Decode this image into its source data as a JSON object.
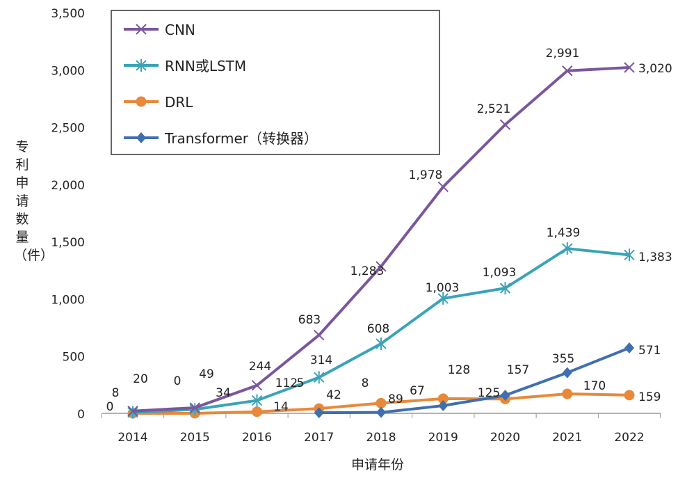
{
  "chart_data": {
    "type": "line",
    "title": "",
    "xlabel": "申请年份",
    "ylabel": "专利申请数量（件）",
    "x": [
      2014,
      2015,
      2016,
      2017,
      2018,
      2019,
      2020,
      2021,
      2022
    ],
    "ylim": [
      0,
      3500
    ],
    "yticks": [
      0,
      500,
      1000,
      1500,
      2000,
      2500,
      3000,
      3500
    ],
    "ytick_labels": [
      "0",
      "500",
      "1,000",
      "1,500",
      "2,000",
      "2,500",
      "3,000",
      "3,500"
    ],
    "grid": false,
    "legend_position": "top-left",
    "series": [
      {
        "name": "CNN",
        "color": "#7b569e",
        "marker": "x",
        "values": [
          20,
          49,
          244,
          683,
          1283,
          1978,
          2521,
          2991,
          3020
        ]
      },
      {
        "name": "RNN或LSTM",
        "color": "#3aa3b8",
        "marker": "asterisk",
        "values": [
          8,
          34,
          112,
          314,
          608,
          1003,
          1093,
          1439,
          1383
        ]
      },
      {
        "name": "DRL",
        "color": "#e8893a",
        "marker": "circle",
        "values": [
          0,
          0,
          14,
          42,
          89,
          128,
          125,
          170,
          159
        ]
      },
      {
        "name": "Transformer（转换器）",
        "color": "#3f6fae",
        "marker": "diamond",
        "values": [
          null,
          null,
          null,
          5,
          8,
          67,
          157,
          355,
          571
        ]
      }
    ]
  }
}
